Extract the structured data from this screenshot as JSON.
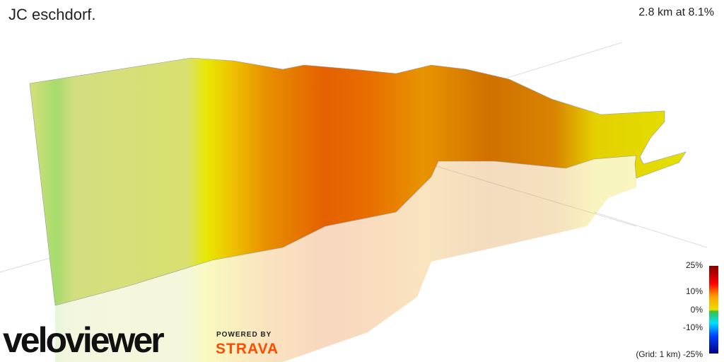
{
  "header": {
    "title": "JC  eschdorf.",
    "stats": "2.8 km at 8.1%"
  },
  "legend": {
    "ticks": [
      "25%",
      "10%",
      "0%",
      "-10%"
    ],
    "bottom": "(Grid: 1 km) -25%"
  },
  "branding": {
    "logo": "veloviewer",
    "powered_by": "POWERED BY",
    "strava": "STRAVA"
  }
}
